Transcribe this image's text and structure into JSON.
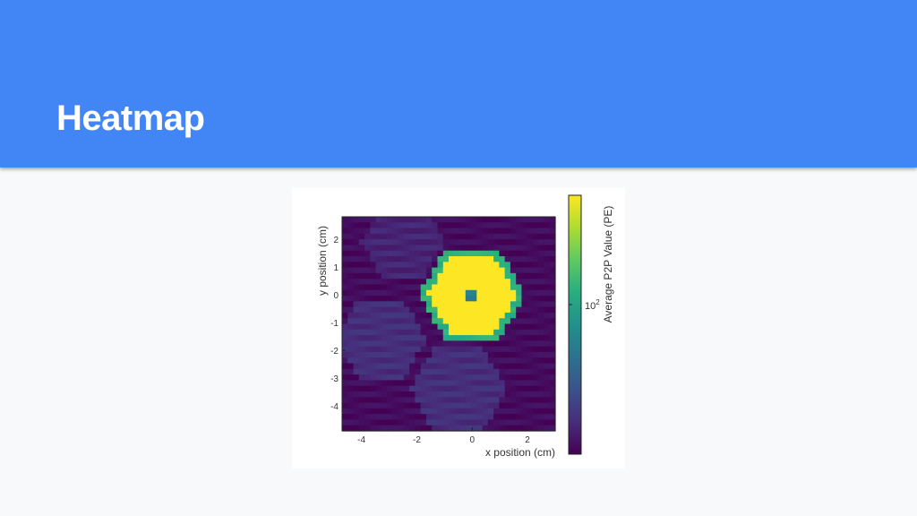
{
  "slide": {
    "title": "Heatmap"
  },
  "colors": {
    "header": "#4285f4",
    "background": "#f8f9fa",
    "title": "#ffffff"
  },
  "chart_data": {
    "type": "heatmap",
    "title": "",
    "xlabel": "x position (cm)",
    "ylabel": "y position (cm)",
    "xlim": [
      -4.7,
      3.0
    ],
    "ylim": [
      -4.9,
      2.8
    ],
    "xticks": [
      -4,
      -2,
      0,
      2
    ],
    "yticks": [
      2,
      1,
      0,
      -1,
      -2,
      -3,
      -4
    ],
    "colorbar": {
      "label": "Average P2P Value (PE)",
      "scale": "log",
      "colormap": "viridis",
      "tick_labels": [
        "10",
        "2"
      ],
      "range": [
        45,
        400
      ]
    },
    "regions": [
      {
        "region": "center hexagon",
        "center": [
          0.0,
          0.0
        ],
        "value": 400
      },
      {
        "region": "center pixel",
        "center": [
          0.0,
          0.0
        ],
        "value": 115
      },
      {
        "region": "hexagon rim",
        "center": [
          0.0,
          0.0
        ],
        "value": 180
      },
      {
        "region": "lower-left hexagon",
        "center": [
          -3.3,
          -1.6
        ],
        "value": 60
      },
      {
        "region": "lower hexagon",
        "center": [
          -0.5,
          -3.4
        ],
        "value": 60
      },
      {
        "region": "upper-left hexagon",
        "center": [
          -2.5,
          1.9
        ],
        "value": 56
      },
      {
        "region": "background",
        "value": 48
      }
    ]
  }
}
